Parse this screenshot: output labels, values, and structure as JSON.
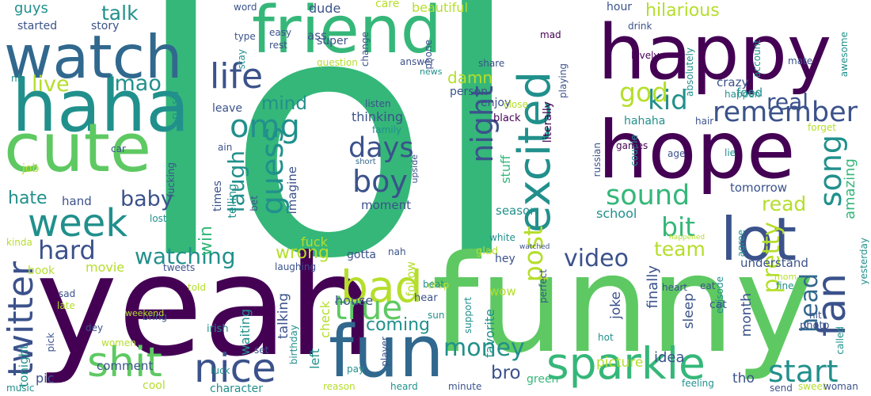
{
  "palette": {
    "dark_purple": "#440154",
    "indigo": "#3b528b",
    "blue": "#31688e",
    "teal": "#21908c",
    "green": "#35b779",
    "bright_green": "#5ec962",
    "lime": "#b5de2b",
    "yellow_green": "#d0e11c"
  },
  "words": [
    "lol",
    "yeah",
    "funny",
    "happy",
    "hope",
    "friend",
    "haha",
    "cute",
    "watch",
    "fun",
    "sparkle",
    "nice",
    "lot",
    "shit",
    "bad",
    "excited",
    "boy",
    "days",
    "omg",
    "week",
    "twitter",
    "life",
    "night",
    "fan",
    "start",
    "remember",
    "true",
    "guess",
    "video",
    "money",
    "hard",
    "kid",
    "sound",
    "song",
    "bit",
    "laugh",
    "head",
    "pretty",
    "watching",
    "hilarious",
    "real",
    "god",
    "live",
    "lmao",
    "mind",
    "talk",
    "post",
    "baby",
    "hate",
    "wrong",
    "team",
    "coming",
    "read",
    "bro",
    "guys",
    "story",
    "started",
    "damn",
    "thinking",
    "tomorrow",
    "crazy",
    "food",
    "hour",
    "school",
    "amazing",
    "person",
    "enjoy",
    "moment",
    "season",
    "stuff",
    "hahaha",
    "joke",
    "sleep",
    "month",
    "finally",
    "follow",
    "understand",
    "idea",
    "picture",
    "green",
    "tho",
    "imagine",
    "talking",
    "waiting",
    "fuck",
    "times",
    "telling",
    "win",
    "job",
    "hand",
    "book",
    "movie",
    "comment",
    "pic",
    "cool",
    "tonight",
    "check",
    "left",
    "house",
    "favorite",
    "word",
    "dude",
    "care",
    "beautiful",
    "ass",
    "easy",
    "rest",
    "super",
    "type",
    "stay",
    "change",
    "phone",
    "mad",
    "question",
    "answer",
    "news",
    "share",
    "listen",
    "family",
    "black",
    "close",
    "literally",
    "playing",
    "upside",
    "short",
    "russian",
    "couple",
    "lie",
    "age",
    "happen",
    "hair",
    "games",
    "mate",
    "lovely",
    "absolutely",
    "account",
    "awesome",
    "drink",
    "forget",
    "leave",
    "russia",
    "ain",
    "car",
    "fucking",
    "bet",
    "lost",
    "glad",
    "white",
    "hey",
    "drop",
    "gotta",
    "nah",
    "hear",
    "beat",
    "sun",
    "support",
    "wow",
    "perfect",
    "watched",
    "happened",
    "heart",
    "eat",
    "mom",
    "fine",
    "episode",
    "cat",
    "agree",
    "yesterday",
    "hit",
    "called",
    "photo",
    "send",
    "sweet",
    "woman",
    "feeling",
    "minute",
    "heard",
    "reason",
    "pay",
    "player",
    "birthday",
    "set",
    "luck",
    "irish",
    "told",
    "dey",
    "bring",
    "women",
    "pick",
    "sad",
    "late",
    "weekend",
    "tweets",
    "laughing",
    "kinda",
    "nft",
    "music",
    "character",
    "hot"
  ]
}
